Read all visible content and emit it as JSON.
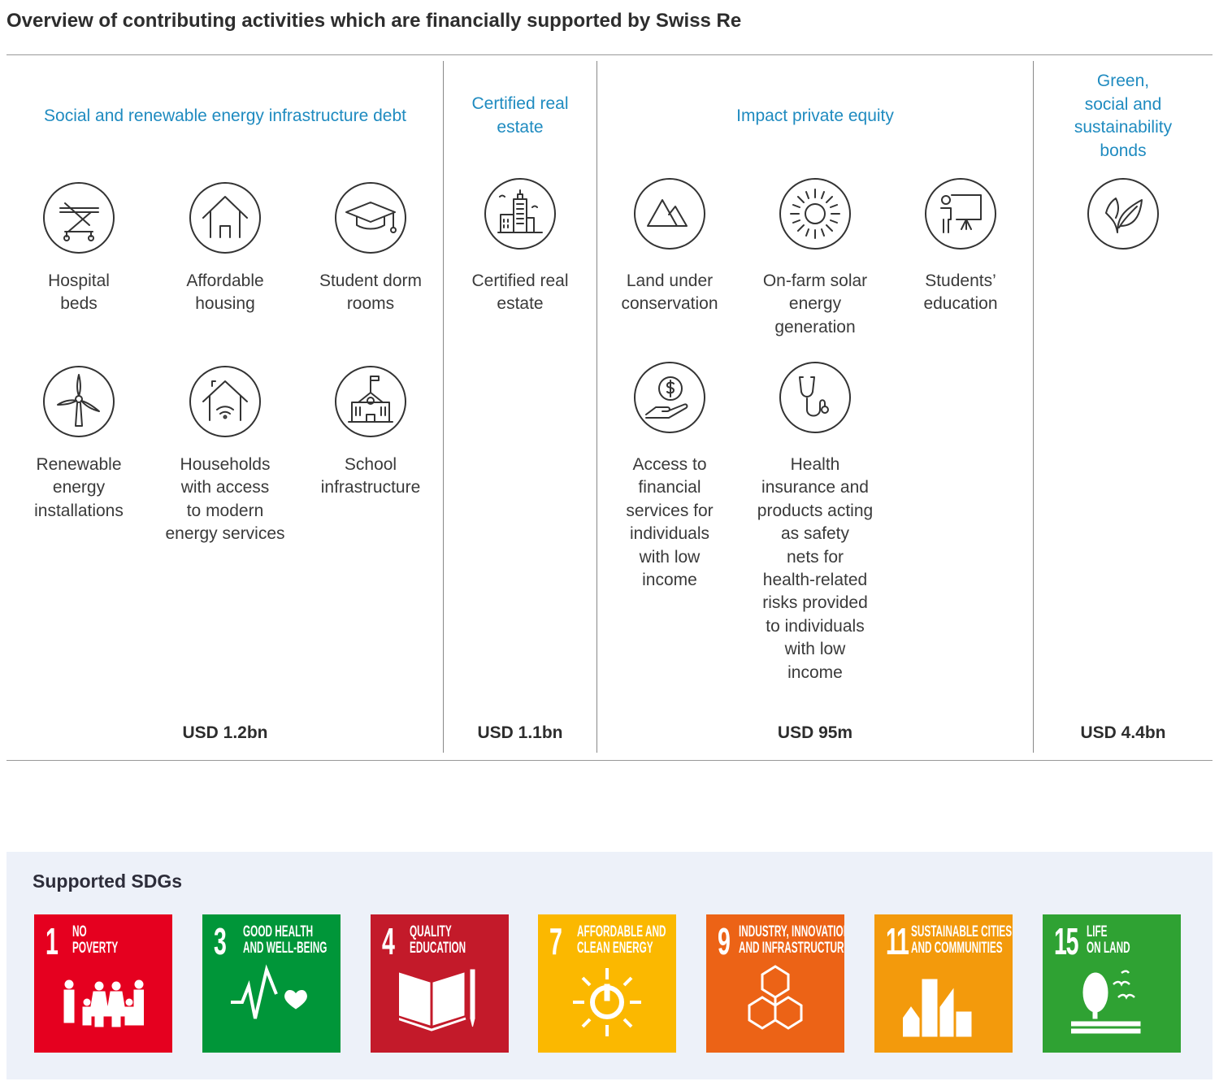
{
  "title": "Overview of contributing activities which are financially supported by Swiss Re",
  "categories": [
    {
      "heading": "Social and renewable energy infrastructure debt",
      "amount": "USD 1.2bn",
      "items": [
        "Hospital\nbeds",
        "Affordable\nhousing",
        "Student dorm\nrooms",
        "Renewable\nenergy\ninstallations",
        "Households\nwith access\nto modern\nenergy services",
        "School\ninfrastructure"
      ],
      "icons": [
        "hospital-bed-icon",
        "house-icon",
        "graduation-cap-icon",
        "wind-turbine-icon",
        "smart-home-icon",
        "school-icon"
      ]
    },
    {
      "heading": "Certified real\nestate",
      "amount": "USD 1.1bn",
      "items": [
        "Certified real\nestate"
      ],
      "icons": [
        "city-buildings-icon"
      ]
    },
    {
      "heading": "Impact private equity",
      "amount": "USD 95m",
      "items": [
        "Land under\nconservation",
        "On-farm solar\nenergy\ngeneration",
        "Students’\neducation",
        "Access to\nfinancial\nservices for\nindividuals\nwith low\nincome",
        "Health\ninsurance and\nproducts acting\nas safety\nnets for\nhealth-related\nrisks provided\nto individuals\nwith low\nincome"
      ],
      "icons": [
        "mountains-icon",
        "sun-icon",
        "teacher-board-icon",
        "hand-dollar-icon",
        "stethoscope-icon"
      ]
    },
    {
      "heading": "Green,\nsocial and\nsustainability\nbonds",
      "amount": "USD 4.4bn",
      "items": [],
      "icons": [
        "leaf-icon"
      ]
    }
  ],
  "sdgs": {
    "title": "Supported SDGs",
    "goals": [
      {
        "number": "1",
        "name": "NO\nPOVERTY",
        "color": "#e5001f",
        "icon": "family-icon"
      },
      {
        "number": "3",
        "name": "GOOD HEALTH\nAND WELL-BEING",
        "color": "#009639",
        "icon": "heartbeat-icon"
      },
      {
        "number": "4",
        "name": "QUALITY\nEDUCATION",
        "color": "#c31a2a",
        "icon": "book-pencil-icon"
      },
      {
        "number": "7",
        "name": "AFFORDABLE AND\nCLEAN ENERGY",
        "color": "#fbb800",
        "icon": "sun-power-icon"
      },
      {
        "number": "9",
        "name": "INDUSTRY, INNOVATION\nAND INFRASTRUCTURE",
        "color": "#ec6316",
        "icon": "cubes-icon"
      },
      {
        "number": "11",
        "name": "SUSTAINABLE CITIES\nAND COMMUNITIES",
        "color": "#f39a0c",
        "icon": "city-icon"
      },
      {
        "number": "15",
        "name": "LIFE\nON LAND",
        "color": "#2fa233",
        "icon": "tree-birds-icon"
      }
    ]
  }
}
